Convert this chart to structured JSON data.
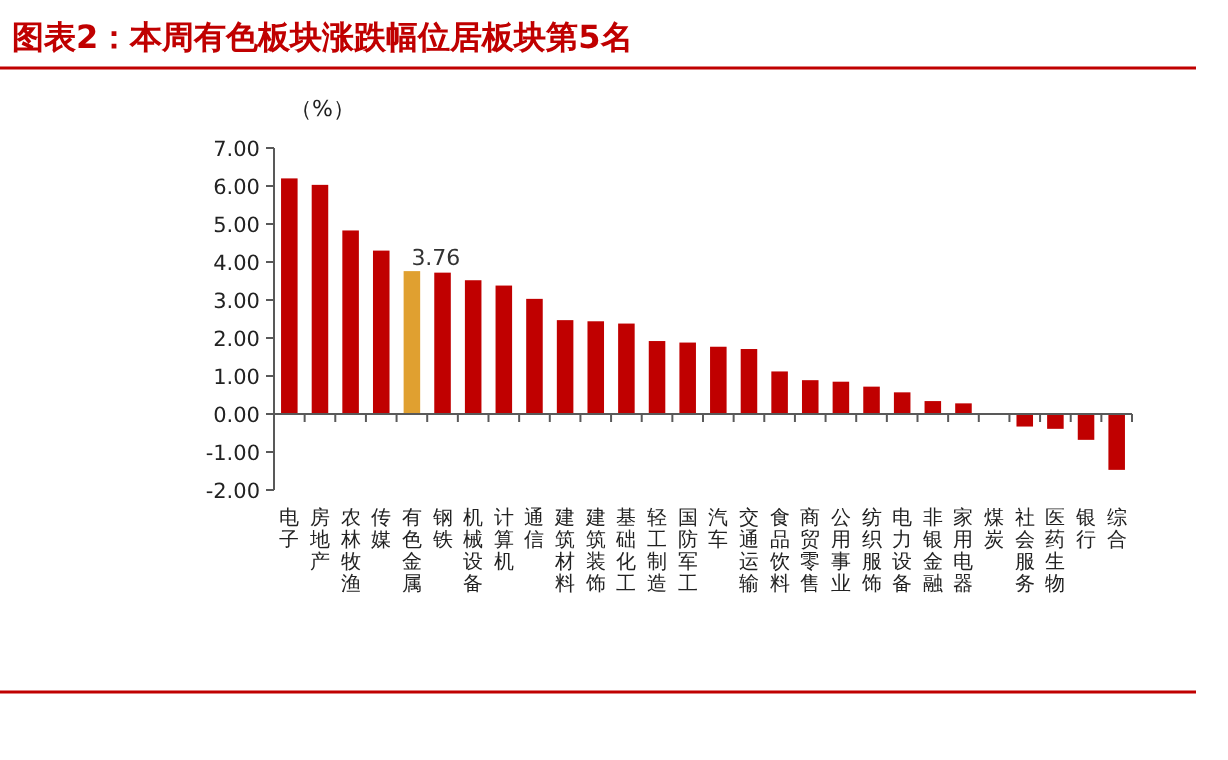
{
  "chart_data": {
    "type": "bar",
    "title": "图表2：本周有色板块涨跌幅位居板块第5名",
    "ylabel": "（%）",
    "categories": [
      "电子",
      "房地产",
      "农林牧渔",
      "传媒",
      "有色金属",
      "钢铁",
      "机械设备",
      "计算机",
      "通信",
      "建筑材料",
      "建筑装饰",
      "基础化工",
      "轻工制造",
      "国防军工",
      "汽车",
      "交通运输",
      "食品饮料",
      "商贸零售",
      "公用事业",
      "纺织服饰",
      "电力设备",
      "非银金融",
      "家用电器",
      "煤炭",
      "社会服务",
      "医药生物",
      "银行",
      "综合"
    ],
    "values": [
      6.2,
      6.03,
      4.83,
      4.3,
      3.76,
      3.72,
      3.52,
      3.38,
      3.03,
      2.47,
      2.44,
      2.38,
      1.92,
      1.88,
      1.77,
      1.71,
      1.12,
      0.89,
      0.85,
      0.72,
      0.57,
      0.34,
      0.28,
      0,
      -0.33,
      -0.39,
      -0.68,
      -1.47
    ],
    "colors": [
      "#c00000",
      "#c00000",
      "#c00000",
      "#c00000",
      "#e0a030",
      "#c00000",
      "#c00000",
      "#c00000",
      "#c00000",
      "#c00000",
      "#c00000",
      "#c00000",
      "#c00000",
      "#c00000",
      "#c00000",
      "#c00000",
      "#c00000",
      "#c00000",
      "#c00000",
      "#c00000",
      "#c00000",
      "#c00000",
      "#c00000",
      "#c00000",
      "#c00000",
      "#c00000",
      "#c00000",
      "#c00000"
    ],
    "value_labels": [
      null,
      null,
      null,
      null,
      "3.76",
      null,
      null,
      null,
      null,
      null,
      null,
      null,
      null,
      null,
      null,
      null,
      null,
      null,
      null,
      null,
      null,
      null,
      null,
      null,
      null,
      null,
      null,
      null
    ],
    "ylim": [
      -2,
      7
    ],
    "yticks": [
      {
        "value": -2,
        "label": "-2.00"
      },
      {
        "value": -1,
        "label": "-1.00"
      },
      {
        "value": 0,
        "label": "0.00"
      },
      {
        "value": 1,
        "label": "1.00"
      },
      {
        "value": 2,
        "label": "2.00"
      },
      {
        "value": 3,
        "label": "3.00"
      },
      {
        "value": 4,
        "label": "4.00"
      },
      {
        "value": 5,
        "label": "5.00"
      },
      {
        "value": 6,
        "label": "6.00"
      },
      {
        "value": 7,
        "label": "7.00"
      }
    ]
  }
}
